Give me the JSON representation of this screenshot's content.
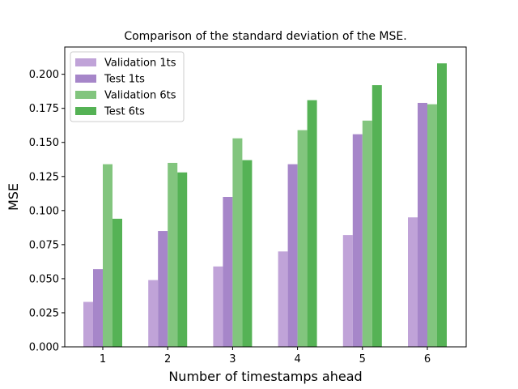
{
  "chart_data": {
    "type": "bar",
    "title": "Comparison of the standard deviation of the MSE.",
    "xlabel": "Number of timestamps ahead",
    "ylabel": "MSE",
    "categories": [
      "1",
      "2",
      "3",
      "4",
      "5",
      "6"
    ],
    "ylim": [
      0,
      0.22
    ],
    "yticks": [
      "0.000",
      "0.025",
      "0.050",
      "0.075",
      "0.100",
      "0.125",
      "0.150",
      "0.175",
      "0.200"
    ],
    "legend_position": "top-left",
    "grid": false,
    "series": [
      {
        "name": "Validation 1ts",
        "color": "#c0a3d8",
        "values": [
          0.033,
          0.049,
          0.059,
          0.07,
          0.082,
          0.095
        ]
      },
      {
        "name": "Test 1ts",
        "color": "#a686c9",
        "values": [
          0.057,
          0.085,
          0.11,
          0.134,
          0.156,
          0.179
        ]
      },
      {
        "name": "Validation 6ts",
        "color": "#82c57e",
        "values": [
          0.134,
          0.135,
          0.153,
          0.159,
          0.166,
          0.178
        ]
      },
      {
        "name": "Test 6ts",
        "color": "#55b255",
        "values": [
          0.094,
          0.128,
          0.137,
          0.181,
          0.192,
          0.208
        ]
      }
    ]
  }
}
